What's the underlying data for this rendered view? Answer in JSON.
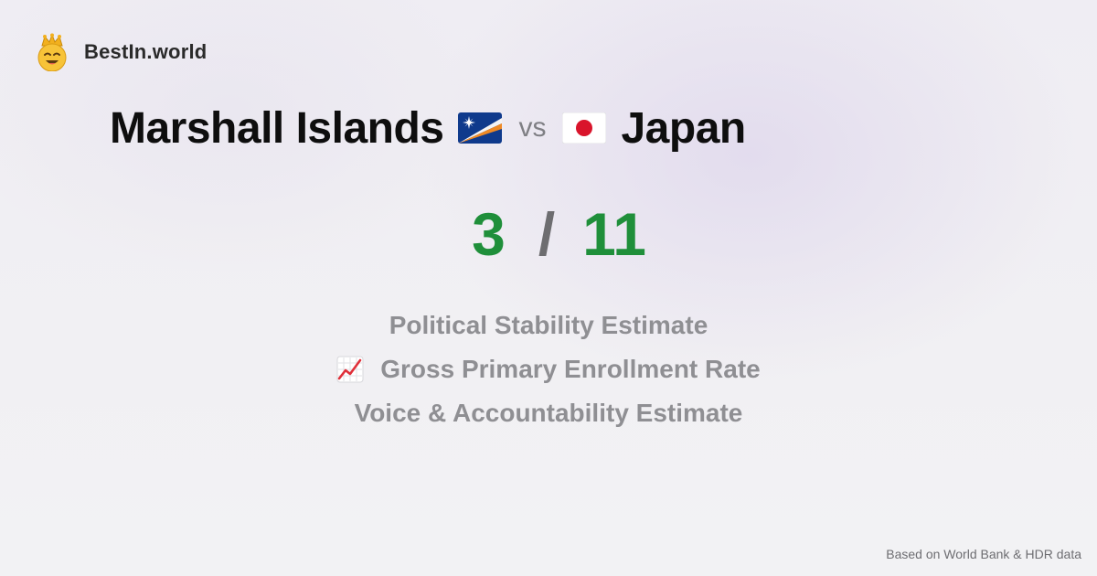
{
  "brand": {
    "name": "BestIn.world",
    "icon": "crown-smiley-icon"
  },
  "title": {
    "country_a": "Marshall Islands",
    "country_a_flag": "marshall-islands-flag-icon",
    "vs": "vs",
    "country_b": "Japan",
    "country_b_flag": "japan-flag-icon"
  },
  "score": {
    "left": "3",
    "separator": "/",
    "right": "11",
    "color": "#1f8f3a"
  },
  "metrics": [
    {
      "label": "Political Stability Estimate",
      "icon": ""
    },
    {
      "label": "Gross Primary Enrollment Rate",
      "icon": "chart-increasing-icon"
    },
    {
      "label": "Voice & Accountability Estimate",
      "icon": ""
    }
  ],
  "footer": {
    "text": "Based on World Bank & HDR data"
  }
}
